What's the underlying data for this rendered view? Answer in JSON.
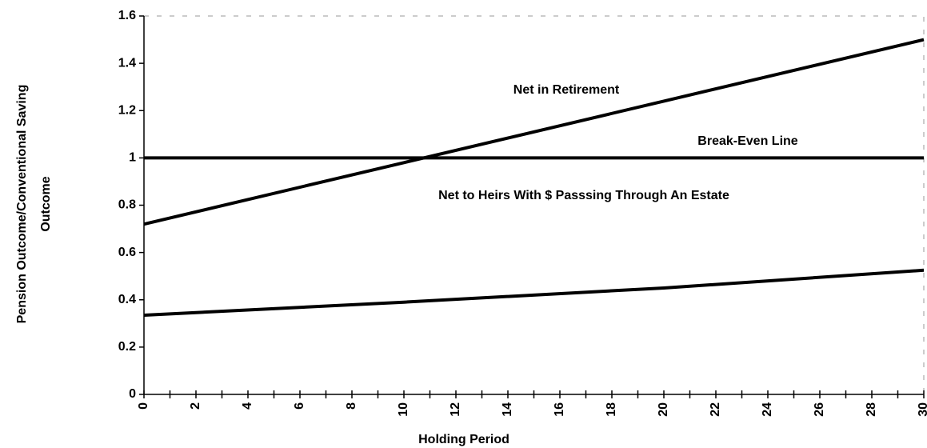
{
  "chart_data": {
    "type": "line",
    "xlabel": "Holding Period",
    "ylabel": [
      "Pension Outcome/Conventional Saving",
      "Outcome"
    ],
    "x": [
      0,
      10,
      20,
      30
    ],
    "series": [
      {
        "name": "Net in Retirement",
        "color": "#000000",
        "values": [
          0.72,
          0.98,
          1.24,
          1.5
        ]
      },
      {
        "name": "Break-Even Line",
        "color": "#000000",
        "values": [
          1,
          1,
          1,
          1
        ]
      },
      {
        "name": "Net to Heirs With $ Passsing Through An Estate",
        "color": "#000000",
        "values": [
          0.335,
          0.39,
          0.45,
          0.525
        ]
      }
    ],
    "xlim": [
      0,
      30
    ],
    "xticks": [
      0,
      2,
      4,
      6,
      8,
      10,
      12,
      14,
      16,
      18,
      20,
      22,
      24,
      26,
      28,
      30
    ],
    "ylim": [
      0,
      1.6
    ],
    "yticks": [
      0,
      0.2,
      0.4,
      0.6,
      0.8,
      1,
      1.2,
      1.4,
      1.6
    ]
  }
}
